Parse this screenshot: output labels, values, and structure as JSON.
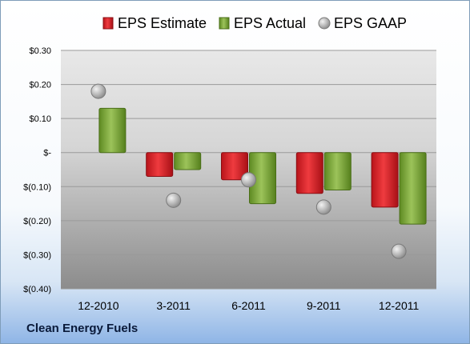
{
  "company": "Clean Energy Fuels",
  "colors": {
    "estimate": "#d9262b",
    "actual": "#7aa63a",
    "gaap": "#a8a8a8"
  },
  "chart_data": {
    "type": "bar",
    "title": "",
    "xlabel": "",
    "ylabel": "",
    "categories": [
      "12-2010",
      "3-2011",
      "6-2011",
      "9-2011",
      "12-2011"
    ],
    "ylim": [
      -0.4,
      0.3
    ],
    "yticks": [
      0.3,
      0.2,
      0.1,
      0,
      -0.1,
      -0.2,
      -0.3,
      -0.4
    ],
    "ytick_labels": [
      "$0.30",
      "$0.20",
      "$0.10",
      "$-",
      "$(0.10)",
      "$(0.20)",
      "$(0.30)",
      "$(0.40)"
    ],
    "legend_position": "top",
    "grid": true,
    "series": [
      {
        "name": "EPS Estimate",
        "kind": "bar",
        "values": [
          null,
          -0.07,
          -0.08,
          -0.12,
          -0.16
        ]
      },
      {
        "name": "EPS Actual",
        "kind": "bar",
        "values": [
          0.13,
          -0.05,
          -0.15,
          -0.11,
          -0.21
        ]
      },
      {
        "name": "EPS GAAP",
        "kind": "marker",
        "values": [
          0.18,
          -0.14,
          -0.08,
          -0.16,
          -0.29
        ]
      }
    ]
  }
}
